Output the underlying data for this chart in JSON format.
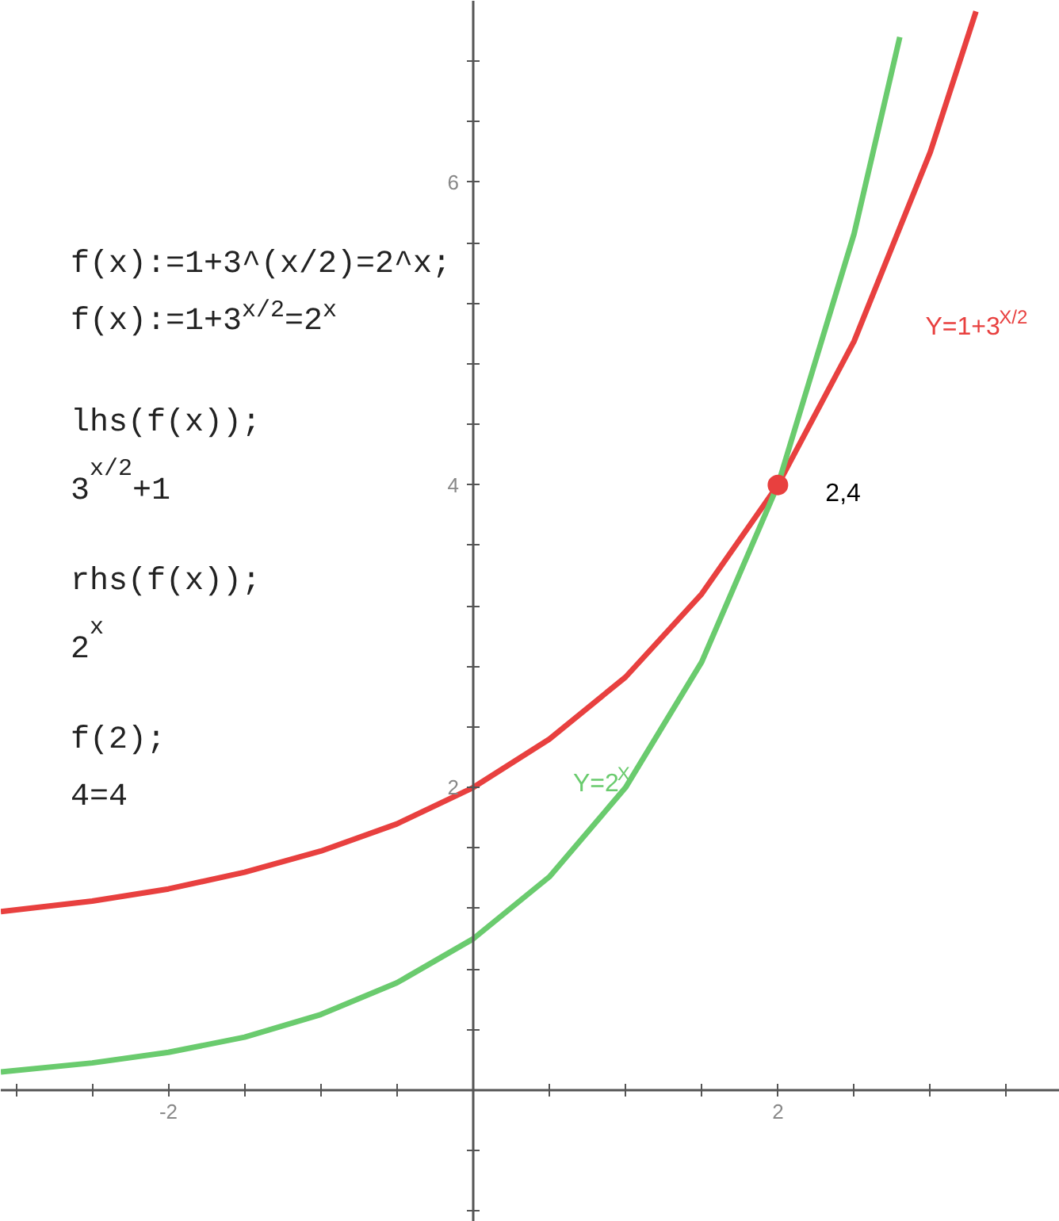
{
  "chart_data": {
    "type": "line",
    "xlim": [
      -3.1,
      3.85
    ],
    "ylim": [
      -0.87,
      7.2
    ],
    "xticks": [
      {
        "value": -3,
        "label": null
      },
      {
        "value": -2.5,
        "label": null
      },
      -2,
      {
        "value": -1.5,
        "label": null
      },
      {
        "value": -1,
        "label": null
      },
      {
        "value": -0.5,
        "label": null
      },
      {
        "value": 0.5,
        "label": null
      },
      {
        "value": 1,
        "label": null
      },
      {
        "value": 1.5,
        "label": null
      },
      2,
      {
        "value": 2.5,
        "label": null
      },
      {
        "value": 3,
        "label": null
      },
      {
        "value": 3.5,
        "label": null
      }
    ],
    "yticks": [
      {
        "value": -0.8,
        "label": null
      },
      {
        "value": -0.4,
        "label": null
      },
      {
        "value": 0.4,
        "label": null
      },
      {
        "value": 0.8,
        "label": null
      },
      {
        "value": 1.2,
        "label": null
      },
      {
        "value": 1.6,
        "label": null
      },
      2,
      {
        "value": 2.4,
        "label": null
      },
      {
        "value": 2.8,
        "label": null
      },
      {
        "value": 3.2,
        "label": null
      },
      {
        "value": 3.6,
        "label": null
      },
      4,
      {
        "value": 4.4,
        "label": null
      },
      {
        "value": 4.8,
        "label": null
      },
      {
        "value": 5.2,
        "label": null
      },
      {
        "value": 5.6,
        "label": null
      },
      6,
      {
        "value": 6.4,
        "label": null
      },
      {
        "value": 6.8,
        "label": null
      }
    ],
    "grid": false,
    "marker": "none",
    "line_style": "solid",
    "series": [
      {
        "name": "Y=1+3$^{X/2}$",
        "color": "#e8403f",
        "x": [
          -3.1,
          -2.5,
          -2,
          -1.5,
          -1,
          -0.5,
          0,
          0.5,
          1,
          1.5,
          2,
          2.5,
          3,
          3.3
        ],
        "values": [
          1.18,
          1.25,
          1.33,
          1.44,
          1.58,
          1.76,
          2,
          2.32,
          2.73,
          3.28,
          4,
          4.95,
          6.2,
          7.13
        ]
      },
      {
        "name": "Y=2$^{X}$",
        "color": "#6acb6e",
        "x": [
          -3.1,
          -2.5,
          -2,
          -1.5,
          -1,
          -0.5,
          0,
          0.5,
          1,
          1.5,
          2,
          2.5,
          2.8
        ],
        "values": [
          0.12,
          0.18,
          0.25,
          0.35,
          0.5,
          0.71,
          1,
          1.41,
          2,
          2.83,
          4,
          5.66,
          6.96
        ]
      },
      {
        "type": "scatter",
        "marker": "circle",
        "color": "#e8403f",
        "x": [
          2
        ],
        "values": [
          4
        ]
      }
    ],
    "annotations": [
      {
        "text": "2,4",
        "x": 2,
        "y": 4
      },
      "f(x):=1+3^(x/2)=2^x;",
      "f(x):=1+3$^{x/2}$=2$^{x}$",
      "lhs(f(x));",
      "3$^{x/2}$+1",
      "rhs(f(x));",
      "2$^{x}$",
      "f(2);",
      "4=4"
    ]
  }
}
